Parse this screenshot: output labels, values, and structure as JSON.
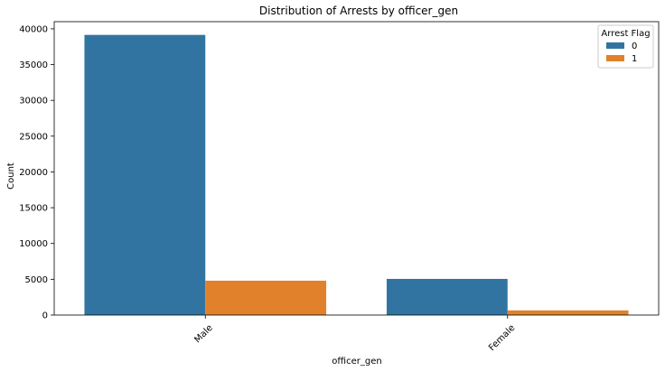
{
  "chart_data": {
    "type": "bar",
    "title": "Distribution of Arrests by officer_gen",
    "xlabel": "officer_gen",
    "ylabel": "Count",
    "categories": [
      "Male",
      "Female"
    ],
    "series": [
      {
        "name": "0",
        "values": [
          39150,
          5050
        ],
        "color": "#3274a1"
      },
      {
        "name": "1",
        "values": [
          4800,
          650
        ],
        "color": "#e1812c"
      }
    ],
    "ylim": [
      0,
      41000
    ],
    "yticks": [
      0,
      5000,
      10000,
      15000,
      20000,
      25000,
      30000,
      35000,
      40000
    ],
    "legend": {
      "title": "Arrest Flag",
      "placement": "top-right"
    },
    "grid": false,
    "xtick_rotation": 45
  }
}
